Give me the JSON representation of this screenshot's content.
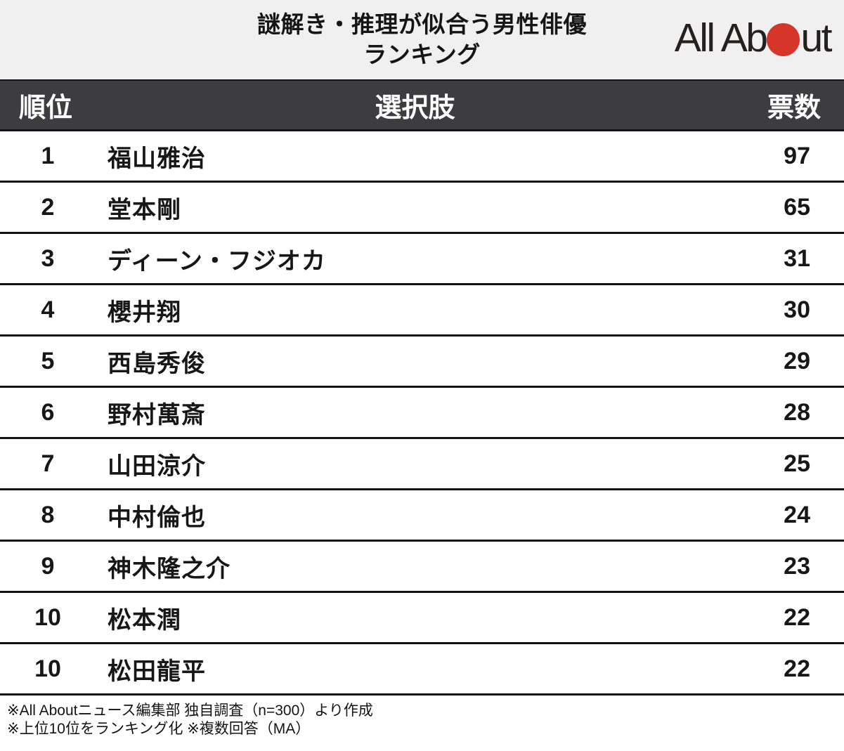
{
  "title": {
    "line1": "謎解き・推理が似合う男性俳優",
    "line2": "ランキング"
  },
  "logo": {
    "text_before_dot": "All Ab",
    "text_after_dot": "ut",
    "dot_color": "#d63529"
  },
  "colors": {
    "band_bg": "#f1f0f1",
    "table_header_bg": "#3d3c3e",
    "separator": "#131313",
    "accent_red": "#d63529"
  },
  "chart_data": {
    "type": "table",
    "title": "謎解き・推理が似合う男性俳優ランキング",
    "columns": [
      "順位",
      "選択肢",
      "票数"
    ],
    "rows": [
      {
        "rank": "1",
        "name": "福山雅治",
        "votes": 97
      },
      {
        "rank": "2",
        "name": "堂本剛",
        "votes": 65
      },
      {
        "rank": "3",
        "name": "ディーン・フジオカ",
        "votes": 31
      },
      {
        "rank": "4",
        "name": "櫻井翔",
        "votes": 30
      },
      {
        "rank": "5",
        "name": "西島秀俊",
        "votes": 29
      },
      {
        "rank": "6",
        "name": "野村萬斎",
        "votes": 28
      },
      {
        "rank": "7",
        "name": "山田涼介",
        "votes": 25
      },
      {
        "rank": "8",
        "name": "中村倫也",
        "votes": 24
      },
      {
        "rank": "9",
        "name": "神木隆之介",
        "votes": 23
      },
      {
        "rank": "10",
        "name": "松本潤",
        "votes": 22
      },
      {
        "rank": "10",
        "name": "松田龍平",
        "votes": 22
      }
    ]
  },
  "footnotes": [
    "※All Aboutニュース編集部 独自調査（n=300）より作成",
    "※上位10位をランキング化 ※複数回答（MA）"
  ]
}
